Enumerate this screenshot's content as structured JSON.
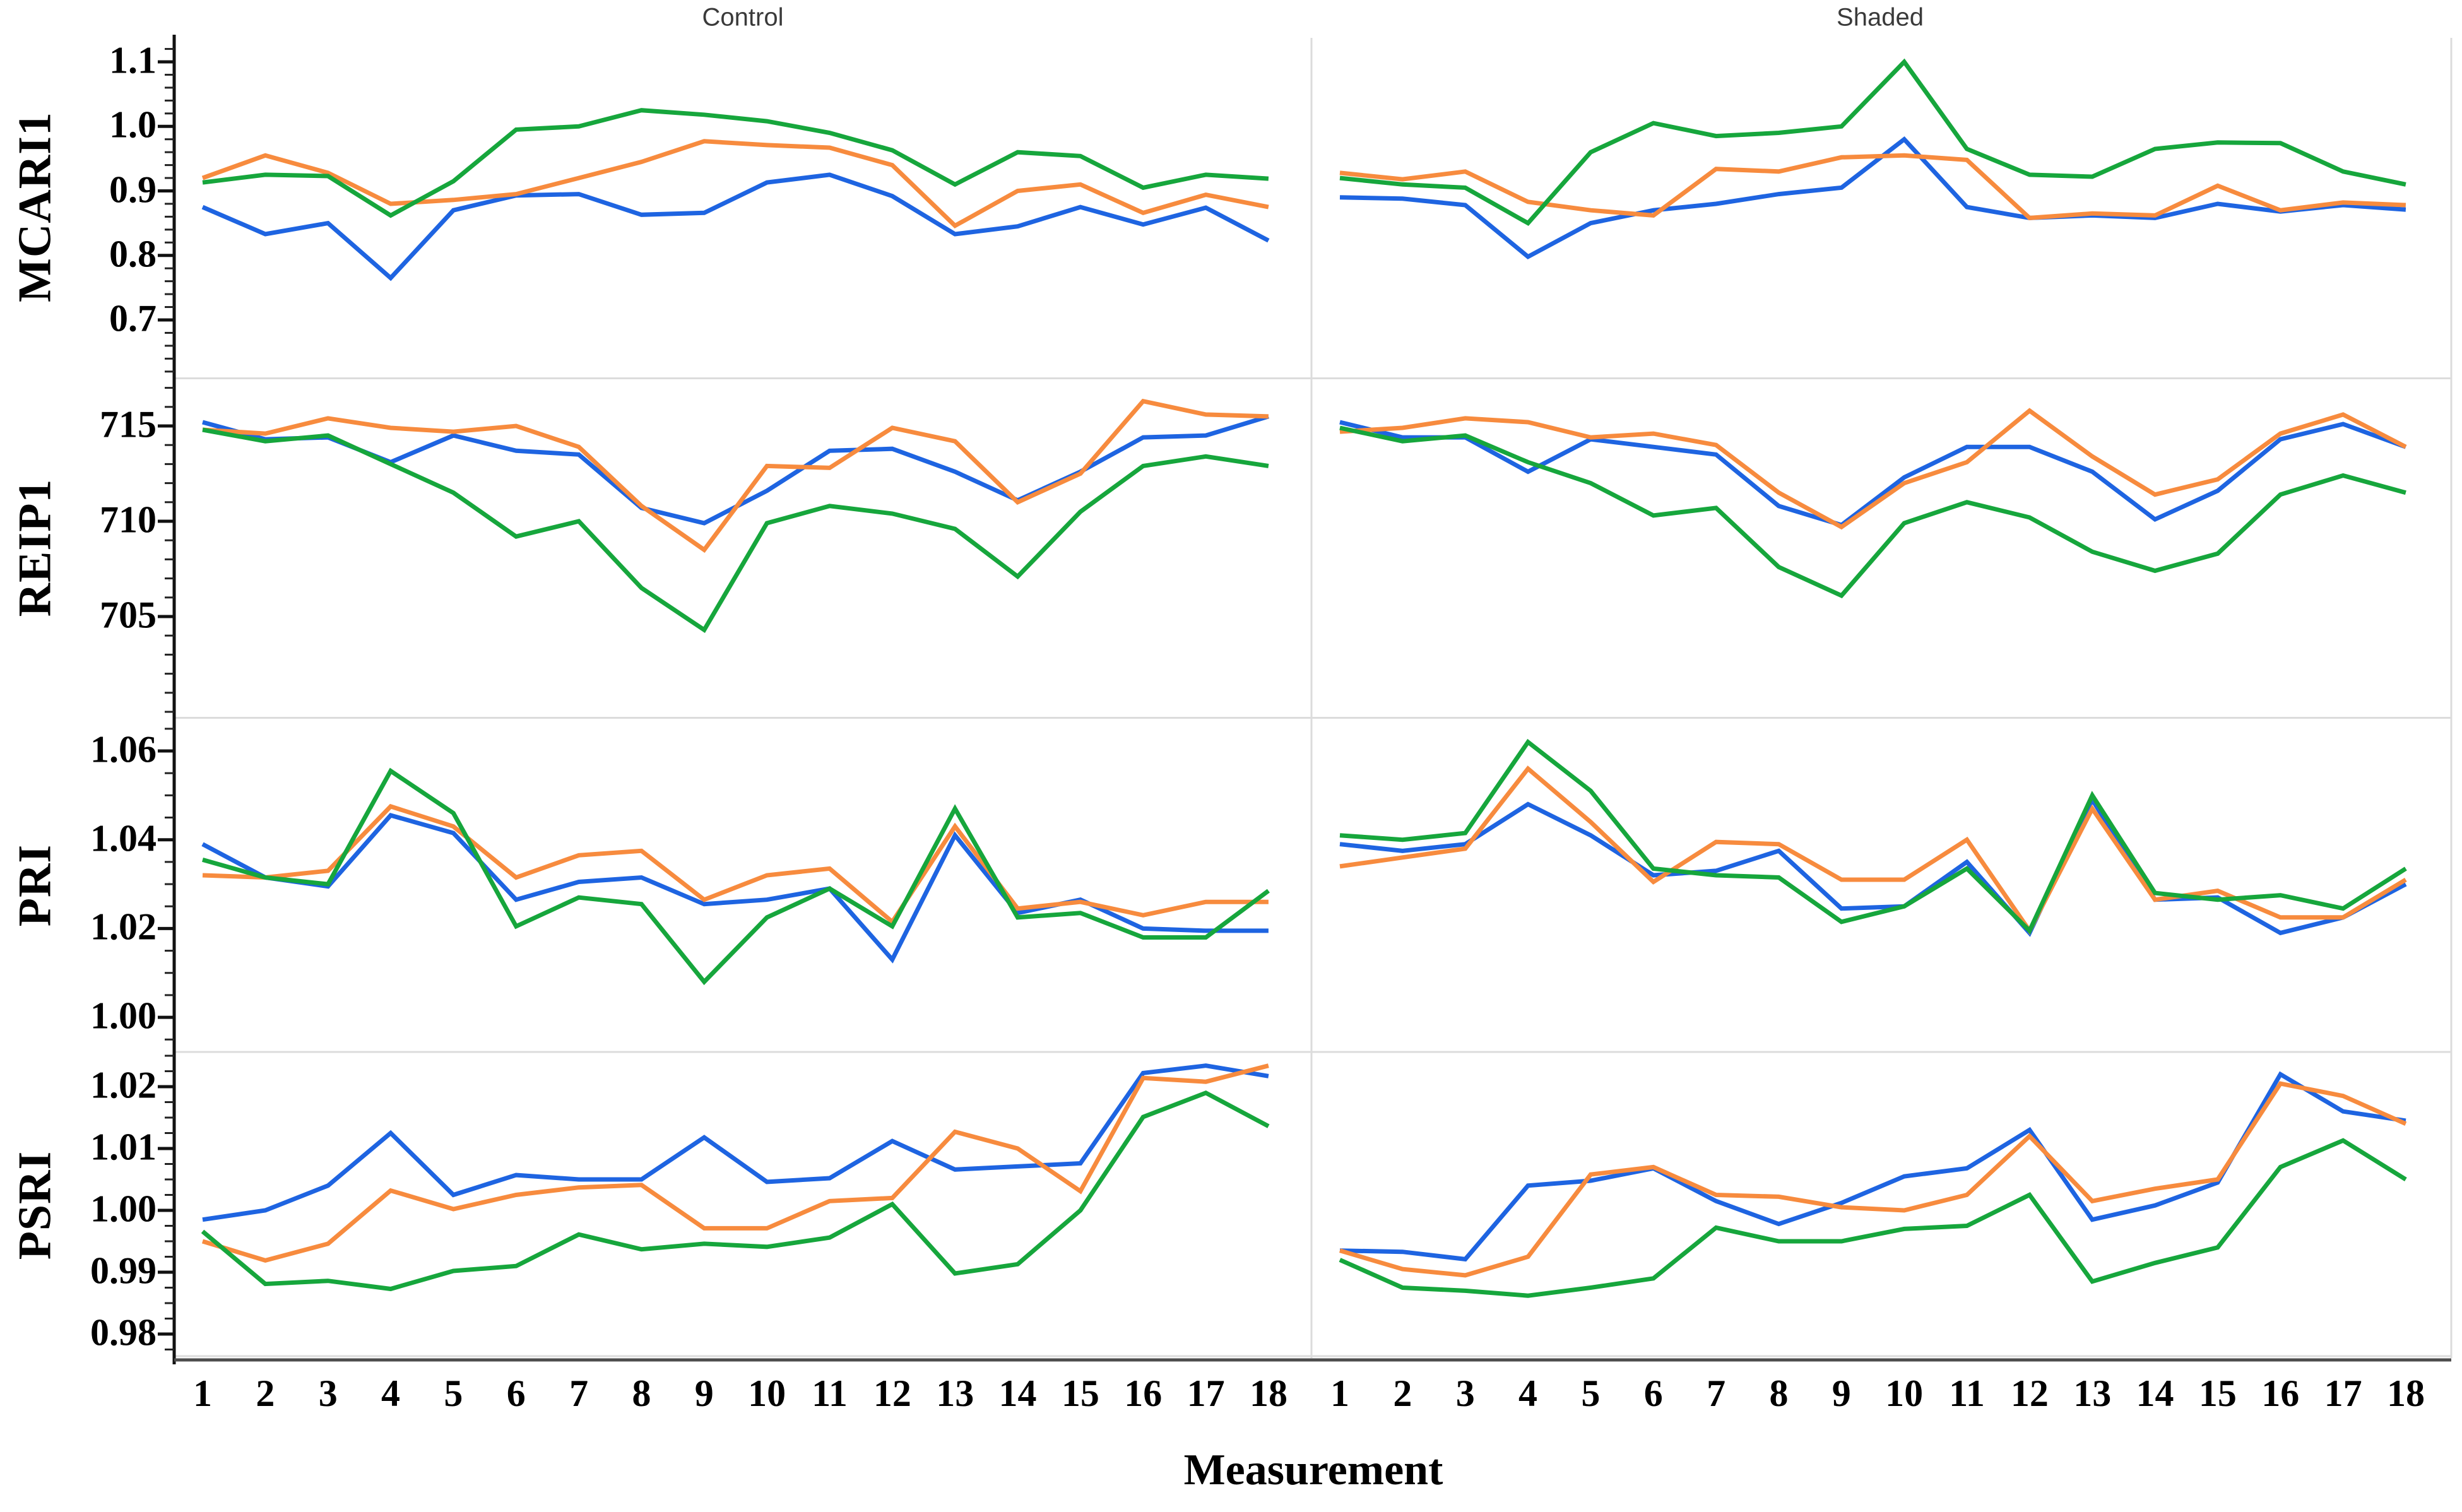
{
  "chart_data": {
    "type": "line",
    "xlabel": "Measurement",
    "col_titles": [
      "Control",
      "Shaded"
    ],
    "x_labels": [
      "1",
      "2",
      "3",
      "4",
      "5",
      "6",
      "7",
      "8",
      "9",
      "10",
      "11",
      "12",
      "13",
      "14",
      "15",
      "16",
      "17",
      "18"
    ],
    "series": [
      {
        "id": "blue",
        "color": "#1e64e1"
      },
      {
        "id": "orange",
        "color": "#f78b3e"
      },
      {
        "id": "green",
        "color": "#16a63c"
      }
    ],
    "rows": [
      {
        "label": "MCARI1",
        "yticks": [
          {
            "value": 1.1,
            "label": "1.1"
          },
          {
            "value": 1.0,
            "label": "1.0"
          },
          {
            "value": 0.9,
            "label": "0.9"
          },
          {
            "value": 0.8,
            "label": "0.8"
          },
          {
            "value": 0.7,
            "label": "0.7"
          }
        ],
        "panels": [
          {
            "col": "Control",
            "values": {
              "blue": [
                0.875,
                0.833,
                0.85,
                0.765,
                0.87,
                0.893,
                0.895,
                0.863,
                0.866,
                0.913,
                0.925,
                0.892,
                0.833,
                0.845,
                0.875,
                0.848,
                0.874,
                0.823
              ],
              "orange": [
                0.92,
                0.955,
                0.928,
                0.88,
                0.886,
                0.895,
                0.92,
                0.945,
                0.977,
                0.971,
                0.967,
                0.94,
                0.846,
                0.9,
                0.91,
                0.866,
                0.894,
                0.875
              ],
              "green": [
                0.913,
                0.925,
                0.923,
                0.862,
                0.915,
                0.995,
                1.0,
                1.025,
                1.018,
                1.008,
                0.99,
                0.963,
                0.91,
                0.96,
                0.954,
                0.905,
                0.925,
                0.919
              ]
            }
          },
          {
            "col": "Shaded",
            "values": {
              "blue": [
                0.89,
                0.888,
                0.878,
                0.798,
                0.85,
                0.87,
                0.88,
                0.895,
                0.905,
                0.98,
                0.875,
                0.858,
                0.862,
                0.858,
                0.88,
                0.868,
                0.878,
                0.871
              ],
              "orange": [
                0.928,
                0.918,
                0.93,
                0.883,
                0.87,
                0.862,
                0.934,
                0.93,
                0.952,
                0.955,
                0.948,
                0.858,
                0.865,
                0.862,
                0.908,
                0.87,
                0.882,
                0.878
              ],
              "green": [
                0.92,
                0.91,
                0.905,
                0.85,
                0.96,
                1.005,
                0.985,
                0.99,
                1.0,
                1.1,
                0.965,
                0.925,
                0.922,
                0.965,
                0.975,
                0.974,
                0.93,
                0.91
              ]
            }
          }
        ]
      },
      {
        "label": "REIP1",
        "yticks": [
          {
            "value": 715,
            "label": "715"
          },
          {
            "value": 710,
            "label": "710"
          },
          {
            "value": 705,
            "label": "705"
          }
        ],
        "panels": [
          {
            "col": "Control",
            "values": {
              "blue": [
                715.2,
                714.3,
                714.4,
                713.1,
                714.5,
                713.7,
                713.5,
                710.7,
                709.9,
                711.6,
                713.7,
                713.8,
                712.6,
                711.1,
                712.6,
                714.4,
                714.5,
                715.5
              ],
              "orange": [
                714.8,
                714.6,
                715.4,
                714.9,
                714.7,
                715.0,
                713.9,
                710.8,
                708.5,
                712.9,
                712.8,
                714.9,
                714.2,
                711.0,
                712.5,
                716.3,
                715.6,
                715.5
              ],
              "green": [
                714.8,
                714.2,
                714.5,
                713.0,
                711.5,
                709.2,
                710.0,
                706.5,
                704.3,
                709.9,
                710.8,
                710.4,
                709.6,
                707.1,
                710.5,
                712.9,
                713.4,
                712.9
              ]
            }
          },
          {
            "col": "Shaded",
            "values": {
              "blue": [
                715.2,
                714.4,
                714.4,
                712.6,
                714.3,
                713.9,
                713.5,
                710.8,
                709.8,
                712.3,
                713.9,
                713.9,
                712.6,
                710.1,
                711.6,
                714.3,
                715.1,
                713.9
              ],
              "orange": [
                714.7,
                714.9,
                715.4,
                715.2,
                714.4,
                714.6,
                714.0,
                711.5,
                709.7,
                712.0,
                713.1,
                715.8,
                713.4,
                711.4,
                712.2,
                714.6,
                715.6,
                713.9
              ],
              "green": [
                714.9,
                714.2,
                714.5,
                713.1,
                712.0,
                710.3,
                710.7,
                707.6,
                706.1,
                709.9,
                711.0,
                710.2,
                708.4,
                707.4,
                708.3,
                711.4,
                712.4,
                711.5
              ]
            }
          }
        ]
      },
      {
        "label": "PRI",
        "yticks": [
          {
            "value": 1.06,
            "label": "1.06"
          },
          {
            "value": 1.04,
            "label": "1.04"
          },
          {
            "value": 1.02,
            "label": "1.02"
          },
          {
            "value": 1.0,
            "label": "1.00"
          }
        ],
        "panels": [
          {
            "col": "Control",
            "values": {
              "blue": [
                1.039,
                1.0315,
                1.0295,
                1.0455,
                1.0415,
                1.0265,
                1.0305,
                1.0315,
                1.0255,
                1.0265,
                1.029,
                1.013,
                1.041,
                1.0235,
                1.0265,
                1.02,
                1.0195,
                1.0195
              ],
              "orange": [
                1.032,
                1.0315,
                1.033,
                1.0475,
                1.043,
                1.0315,
                1.0365,
                1.0375,
                1.0265,
                1.032,
                1.0335,
                1.0215,
                1.043,
                1.0245,
                1.026,
                1.023,
                1.026,
                1.026
              ],
              "green": [
                1.0355,
                1.0315,
                1.03,
                1.0555,
                1.046,
                1.0205,
                1.027,
                1.0255,
                1.008,
                1.0225,
                1.029,
                1.0205,
                1.047,
                1.0225,
                1.0235,
                1.018,
                1.018,
                1.0285
              ]
            }
          },
          {
            "col": "Shaded",
            "values": {
              "blue": [
                1.039,
                1.0375,
                1.039,
                1.048,
                1.041,
                1.032,
                1.033,
                1.0375,
                1.0245,
                1.025,
                1.035,
                1.019,
                1.049,
                1.0265,
                1.027,
                1.019,
                1.0225,
                1.03
              ],
              "orange": [
                1.034,
                1.036,
                1.038,
                1.056,
                1.044,
                1.0305,
                1.0395,
                1.039,
                1.031,
                1.031,
                1.04,
                1.0195,
                1.047,
                1.0265,
                1.0285,
                1.0225,
                1.0225,
                1.031
              ],
              "green": [
                1.041,
                1.04,
                1.0415,
                1.062,
                1.051,
                1.0335,
                1.032,
                1.0315,
                1.0215,
                1.025,
                1.0335,
                1.0195,
                1.05,
                1.028,
                1.0265,
                1.0275,
                1.0245,
                1.0335
              ]
            }
          }
        ]
      },
      {
        "label": "PSRI",
        "yticks": [
          {
            "value": 1.02,
            "label": "1.02"
          },
          {
            "value": 1.01,
            "label": "1.01"
          },
          {
            "value": 1.0,
            "label": "1.00"
          },
          {
            "value": 0.99,
            "label": "0.99"
          },
          {
            "value": 0.98,
            "label": "0.98"
          }
        ],
        "panels": [
          {
            "col": "Control",
            "values": {
              "blue": [
                0.9985,
                1.0,
                1.004,
                1.0125,
                1.0025,
                1.0057,
                1.005,
                1.005,
                1.0118,
                1.0046,
                1.0052,
                1.0112,
                1.0066,
                1.0071,
                1.0076,
                1.0222,
                1.0234,
                1.0217
              ],
              "orange": [
                0.995,
                0.9919,
                0.9946,
                1.0032,
                1.0002,
                1.0025,
                1.0037,
                1.0041,
                0.9971,
                0.9971,
                1.0015,
                1.002,
                1.0127,
                1.01,
                1.0031,
                1.0214,
                1.0208,
                1.0234
              ],
              "green": [
                0.9966,
                0.9881,
                0.9886,
                0.9873,
                0.9902,
                0.991,
                0.9961,
                0.9937,
                0.9946,
                0.9941,
                0.9956,
                1.001,
                0.9898,
                0.9913,
                1.0,
                1.0151,
                1.019,
                1.0136
              ]
            }
          },
          {
            "col": "Shaded",
            "values": {
              "blue": [
                0.9935,
                0.9933,
                0.9921,
                1.004,
                1.0048,
                1.0068,
                1.0015,
                0.9978,
                1.0012,
                1.0055,
                1.0068,
                1.013,
                0.9985,
                1.0008,
                1.0045,
                1.022,
                1.016,
                1.0145
              ],
              "orange": [
                0.9935,
                0.9905,
                0.9895,
                0.9925,
                1.0058,
                1.007,
                1.0025,
                1.0022,
                1.0005,
                1.0,
                1.0025,
                1.012,
                1.0015,
                1.0035,
                1.005,
                1.0205,
                1.0185,
                1.014
              ],
              "green": [
                0.992,
                0.9875,
                0.987,
                0.9862,
                0.9875,
                0.989,
                0.9972,
                0.995,
                0.995,
                0.997,
                0.9975,
                1.0025,
                0.9885,
                0.9915,
                0.994,
                1.007,
                1.0113,
                1.005
              ]
            }
          }
        ]
      }
    ]
  }
}
